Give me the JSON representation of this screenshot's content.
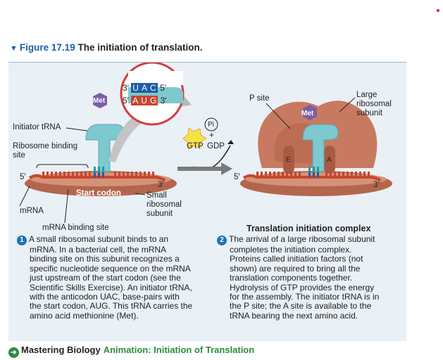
{
  "header": {
    "figure_number": "Figure 17.19",
    "figure_title": "The initiation of translation."
  },
  "diagram": {
    "codon_top": [
      "3′",
      "U",
      "A",
      "C",
      "5′"
    ],
    "codon_bottom": [
      "5′",
      "A",
      "U",
      "G",
      "3′"
    ],
    "labels": {
      "met_left": "Met",
      "met_right": "Met",
      "initiator_trna": "Initiator tRNA",
      "ribosome_binding_site_1": "Ribosome binding",
      "ribosome_binding_site_2": "site",
      "five_prime_left": "5′",
      "three_prime_left": "3′",
      "start_codon": "Start codon",
      "mrna": "mRNA",
      "small_subunit_1": "Small",
      "small_subunit_2": "ribosomal",
      "small_subunit_3": "subunit",
      "mrna_binding_site": "mRNA binding site",
      "pi": "Pi",
      "plus": "+",
      "gtp": "GTP",
      "gdp": "GDP",
      "p_site": "P site",
      "large_subunit_1": "Large",
      "large_subunit_2": "ribosomal",
      "large_subunit_3": "subunit",
      "e_site": "E",
      "a_site": "A",
      "five_prime_right": "5′",
      "three_prime_right": "3′"
    }
  },
  "captions": {
    "step1": {
      "number": "1",
      "lines": [
        "A small ribosomal subunit binds to an",
        "mRNA. In a bacterial cell, the mRNA",
        "binding site on this subunit recognizes a",
        "specific nucleotide sequence on the mRNA",
        "just upstream of the start codon (see the",
        "Scientific Skills Exercise). An initiator tRNA,",
        "with the anticodon UAC, base-pairs with",
        "the start codon, AUG. This tRNA carries the",
        "amino acid methionine (Met)."
      ]
    },
    "step2": {
      "title": "Translation initiation complex",
      "number": "2",
      "lines": [
        "The arrival of a large ribosomal subunit",
        "completes the initiation complex.",
        "Proteins called initiation factors (not",
        "shown) are required to bring all the",
        "translation components together.",
        "Hydrolysis of GTP provides the energy",
        "for the assembly. The initiator tRNA is in",
        "the P site; the A site is available to the",
        "tRNA bearing the next amino acid."
      ]
    }
  },
  "footer": {
    "brand": "Mastering Biology",
    "link_text": "Animation: Initiation of Translation"
  },
  "colors": {
    "accent_blue": "#1d5ea8",
    "ribosome": "#c87a60",
    "trna": "#7ec8cf",
    "met": "#7b5ea8",
    "mrna": "#c8452f",
    "gtp_star": "#f4e24a",
    "link_green": "#2e8b3e"
  }
}
